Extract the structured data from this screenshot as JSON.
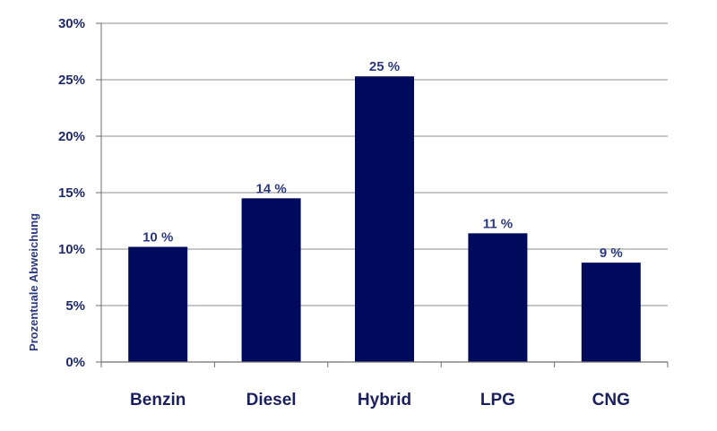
{
  "chart_data": {
    "type": "bar",
    "categories": [
      "Benzin",
      "Diesel",
      "Hybrid",
      "LPG",
      "CNG"
    ],
    "values": [
      10.2,
      14.5,
      25.3,
      11.4,
      8.8
    ],
    "data_labels": [
      "10 %",
      "14 %",
      "25 %",
      "11 %",
      "9 %"
    ],
    "title": "",
    "xlabel": "",
    "ylabel": "Prozentuale Abweichung",
    "ylim": [
      0,
      30
    ],
    "yticks": [
      0,
      5,
      10,
      15,
      20,
      25,
      30
    ],
    "ytick_labels": [
      "0%",
      "5%",
      "10%",
      "15%",
      "20%",
      "25%",
      "30%"
    ],
    "grid": true,
    "legend": "none",
    "colors": {
      "bar": "#000a5c",
      "grid": "#8c8c8c",
      "axis": "#6e6e6e",
      "text": "#1f2a6b"
    }
  }
}
